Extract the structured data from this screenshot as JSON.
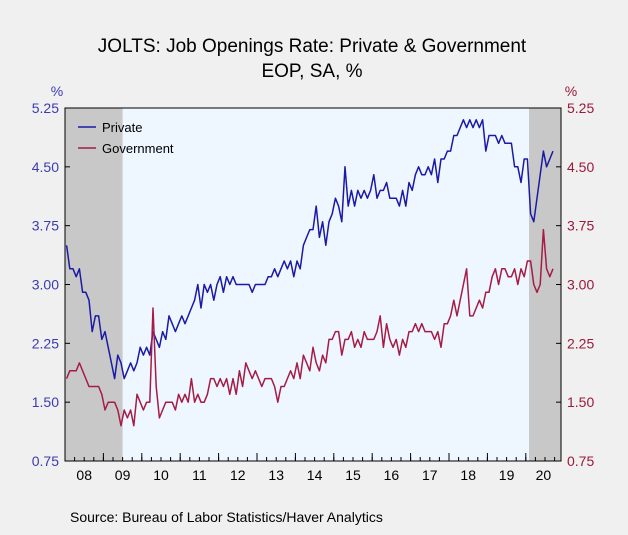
{
  "header": {
    "title_line1": "JOLTS: Job Openings Rate: Private & Government",
    "title_line2": "EOP, SA, %"
  },
  "footer": {
    "source": "Source:  Bureau of Labor Statistics/Haver Analytics"
  },
  "chart_data": {
    "type": "line",
    "title": "JOLTS: Job Openings Rate: Private & Government",
    "subtitle": "EOP, SA, %",
    "ylabel_left": "%",
    "ylabel_right": "%",
    "ylim": [
      0.75,
      5.25
    ],
    "yticks": [
      0.75,
      1.5,
      2.25,
      3.0,
      3.75,
      4.5,
      5.25
    ],
    "ytick_labels": [
      "0.75",
      "1.50",
      "2.25",
      "3.00",
      "3.75",
      "4.50",
      "5.25"
    ],
    "xlim": [
      "2008-01",
      "2020-11"
    ],
    "xtick_labels": [
      "08",
      "09",
      "10",
      "11",
      "12",
      "13",
      "14",
      "15",
      "16",
      "17",
      "18",
      "19",
      "20"
    ],
    "legend_position": "top-left",
    "grid": false,
    "plot_background": "#eef6ff",
    "recession_color": "#c8c8c8",
    "recessions": [
      [
        "2008-01",
        "2009-06"
      ],
      [
        "2020-02",
        "2020-11"
      ]
    ],
    "series": [
      {
        "name": "Private",
        "color": "#1a1aa6",
        "start": "2008-01",
        "values": [
          3.5,
          3.2,
          3.2,
          3.1,
          3.2,
          2.9,
          2.9,
          2.8,
          2.4,
          2.6,
          2.6,
          2.3,
          2.4,
          2.2,
          2.0,
          1.8,
          2.1,
          2.0,
          1.8,
          1.9,
          2.0,
          1.9,
          2.0,
          2.2,
          2.1,
          2.2,
          2.1,
          2.4,
          2.3,
          2.2,
          2.4,
          2.3,
          2.6,
          2.5,
          2.4,
          2.5,
          2.6,
          2.5,
          2.6,
          2.7,
          2.8,
          3.0,
          2.7,
          3.0,
          2.9,
          3.0,
          2.8,
          3.0,
          3.1,
          2.9,
          3.1,
          3.0,
          3.1,
          3.0,
          3.0,
          3.0,
          3.0,
          3.0,
          2.9,
          3.0,
          3.0,
          3.0,
          3.0,
          3.1,
          3.1,
          3.2,
          3.1,
          3.2,
          3.3,
          3.2,
          3.3,
          3.1,
          3.3,
          3.2,
          3.5,
          3.6,
          3.7,
          3.7,
          4.0,
          3.6,
          3.8,
          3.5,
          3.8,
          3.9,
          4.1,
          4.0,
          3.8,
          4.5,
          4.0,
          4.2,
          4.0,
          4.2,
          4.1,
          4.2,
          4.1,
          4.2,
          4.4,
          4.1,
          4.2,
          4.2,
          4.3,
          4.1,
          4.1,
          4.1,
          4.0,
          4.2,
          4.0,
          4.3,
          4.2,
          4.4,
          4.5,
          4.4,
          4.4,
          4.5,
          4.4,
          4.6,
          4.3,
          4.6,
          4.6,
          4.7,
          4.7,
          4.9,
          4.9,
          5.0,
          5.1,
          5.0,
          5.1,
          5.0,
          5.1,
          5.0,
          5.1,
          4.7,
          4.9,
          4.9,
          4.9,
          4.8,
          4.9,
          4.8,
          4.8,
          4.8,
          4.5,
          4.5,
          4.3,
          4.6,
          4.6,
          3.9,
          3.8,
          4.1,
          4.4,
          4.7,
          4.5,
          4.6,
          4.7
        ]
      },
      {
        "name": "Government",
        "color": "#a51c45",
        "start": "2008-01",
        "values": [
          1.8,
          1.9,
          1.9,
          1.9,
          2.0,
          1.9,
          1.8,
          1.7,
          1.7,
          1.7,
          1.7,
          1.6,
          1.4,
          1.5,
          1.5,
          1.5,
          1.4,
          1.2,
          1.4,
          1.3,
          1.4,
          1.2,
          1.6,
          1.5,
          1.4,
          1.5,
          1.5,
          2.7,
          1.7,
          1.3,
          1.4,
          1.5,
          1.5,
          1.5,
          1.4,
          1.6,
          1.5,
          1.6,
          1.5,
          1.8,
          1.5,
          1.6,
          1.5,
          1.5,
          1.6,
          1.8,
          1.8,
          1.7,
          1.8,
          1.7,
          1.8,
          1.6,
          1.8,
          1.6,
          1.9,
          1.7,
          2.0,
          1.9,
          1.8,
          1.9,
          1.8,
          1.7,
          1.8,
          1.8,
          1.8,
          1.7,
          1.5,
          1.7,
          1.7,
          1.8,
          1.9,
          1.8,
          2.0,
          1.8,
          2.1,
          2.0,
          1.9,
          2.2,
          2.0,
          1.9,
          2.1,
          2.0,
          2.3,
          2.3,
          2.4,
          2.4,
          2.1,
          2.3,
          2.3,
          2.4,
          2.2,
          2.3,
          2.2,
          2.4,
          2.3,
          2.3,
          2.3,
          2.4,
          2.6,
          2.2,
          2.5,
          2.3,
          2.2,
          2.3,
          2.1,
          2.3,
          2.2,
          2.4,
          2.4,
          2.5,
          2.4,
          2.5,
          2.4,
          2.4,
          2.4,
          2.3,
          2.4,
          2.2,
          2.5,
          2.5,
          2.6,
          2.8,
          2.6,
          2.8,
          3.0,
          3.2,
          2.6,
          2.6,
          2.7,
          2.8,
          2.7,
          2.9,
          2.9,
          3.1,
          3.2,
          3.0,
          3.2,
          3.2,
          3.1,
          3.1,
          3.2,
          3.0,
          3.2,
          3.1,
          3.3,
          3.3,
          3.0,
          2.9,
          3.0,
          3.7,
          3.2,
          3.1,
          3.2
        ]
      }
    ]
  }
}
